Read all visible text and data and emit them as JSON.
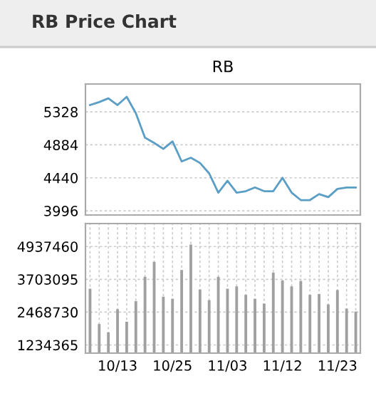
{
  "chart_data": [
    {
      "type": "line",
      "title": "RB Price Chart",
      "subtitle": "RB",
      "categories": [
        null,
        null,
        null,
        null,
        null,
        null,
        null,
        null,
        null,
        null,
        null,
        null,
        null,
        null,
        null,
        null,
        null,
        null,
        null,
        null,
        null,
        null,
        null,
        null,
        null,
        null,
        null,
        null,
        null,
        null
      ],
      "series": [
        {
          "color": "#5a9ec6",
          "values": [
            5420,
            5460,
            5510,
            5420,
            5530,
            5310,
            4980,
            4910,
            4830,
            4930,
            4660,
            4710,
            4640,
            4500,
            4240,
            4400,
            4240,
            4260,
            4310,
            4260,
            4260,
            4440,
            4240,
            4140,
            4140,
            4220,
            4180,
            4290,
            4310,
            4310
          ]
        }
      ],
      "ylim": [
        3939,
        5703
      ],
      "yticks": [
        3996,
        4440,
        4884,
        5328
      ],
      "grid": "y",
      "tick_labels": "y"
    },
    {
      "type": "bar",
      "categories": [
        null,
        null,
        null,
        "10/13",
        null,
        null,
        null,
        null,
        null,
        "10/25",
        null,
        null,
        null,
        null,
        null,
        "11/03",
        null,
        null,
        null,
        null,
        null,
        "11/12",
        null,
        null,
        null,
        null,
        null,
        "11/23",
        null,
        null
      ],
      "series": [
        {
          "color": "#a0a0a0",
          "values": [
            3350000,
            2020000,
            1710000,
            2580000,
            2110000,
            2880000,
            3800000,
            4360000,
            3050000,
            2970000,
            4050000,
            5010000,
            3320000,
            2920000,
            3800000,
            3350000,
            3440000,
            3120000,
            2970000,
            2790000,
            3950000,
            3660000,
            3440000,
            3640000,
            3120000,
            3150000,
            2760000,
            3300000,
            2600000,
            2490000
          ]
        }
      ],
      "ylim": [
        927000,
        5800000
      ],
      "yticks": [
        1234365,
        2468730,
        3703095,
        4937460
      ],
      "grid": true
    }
  ]
}
